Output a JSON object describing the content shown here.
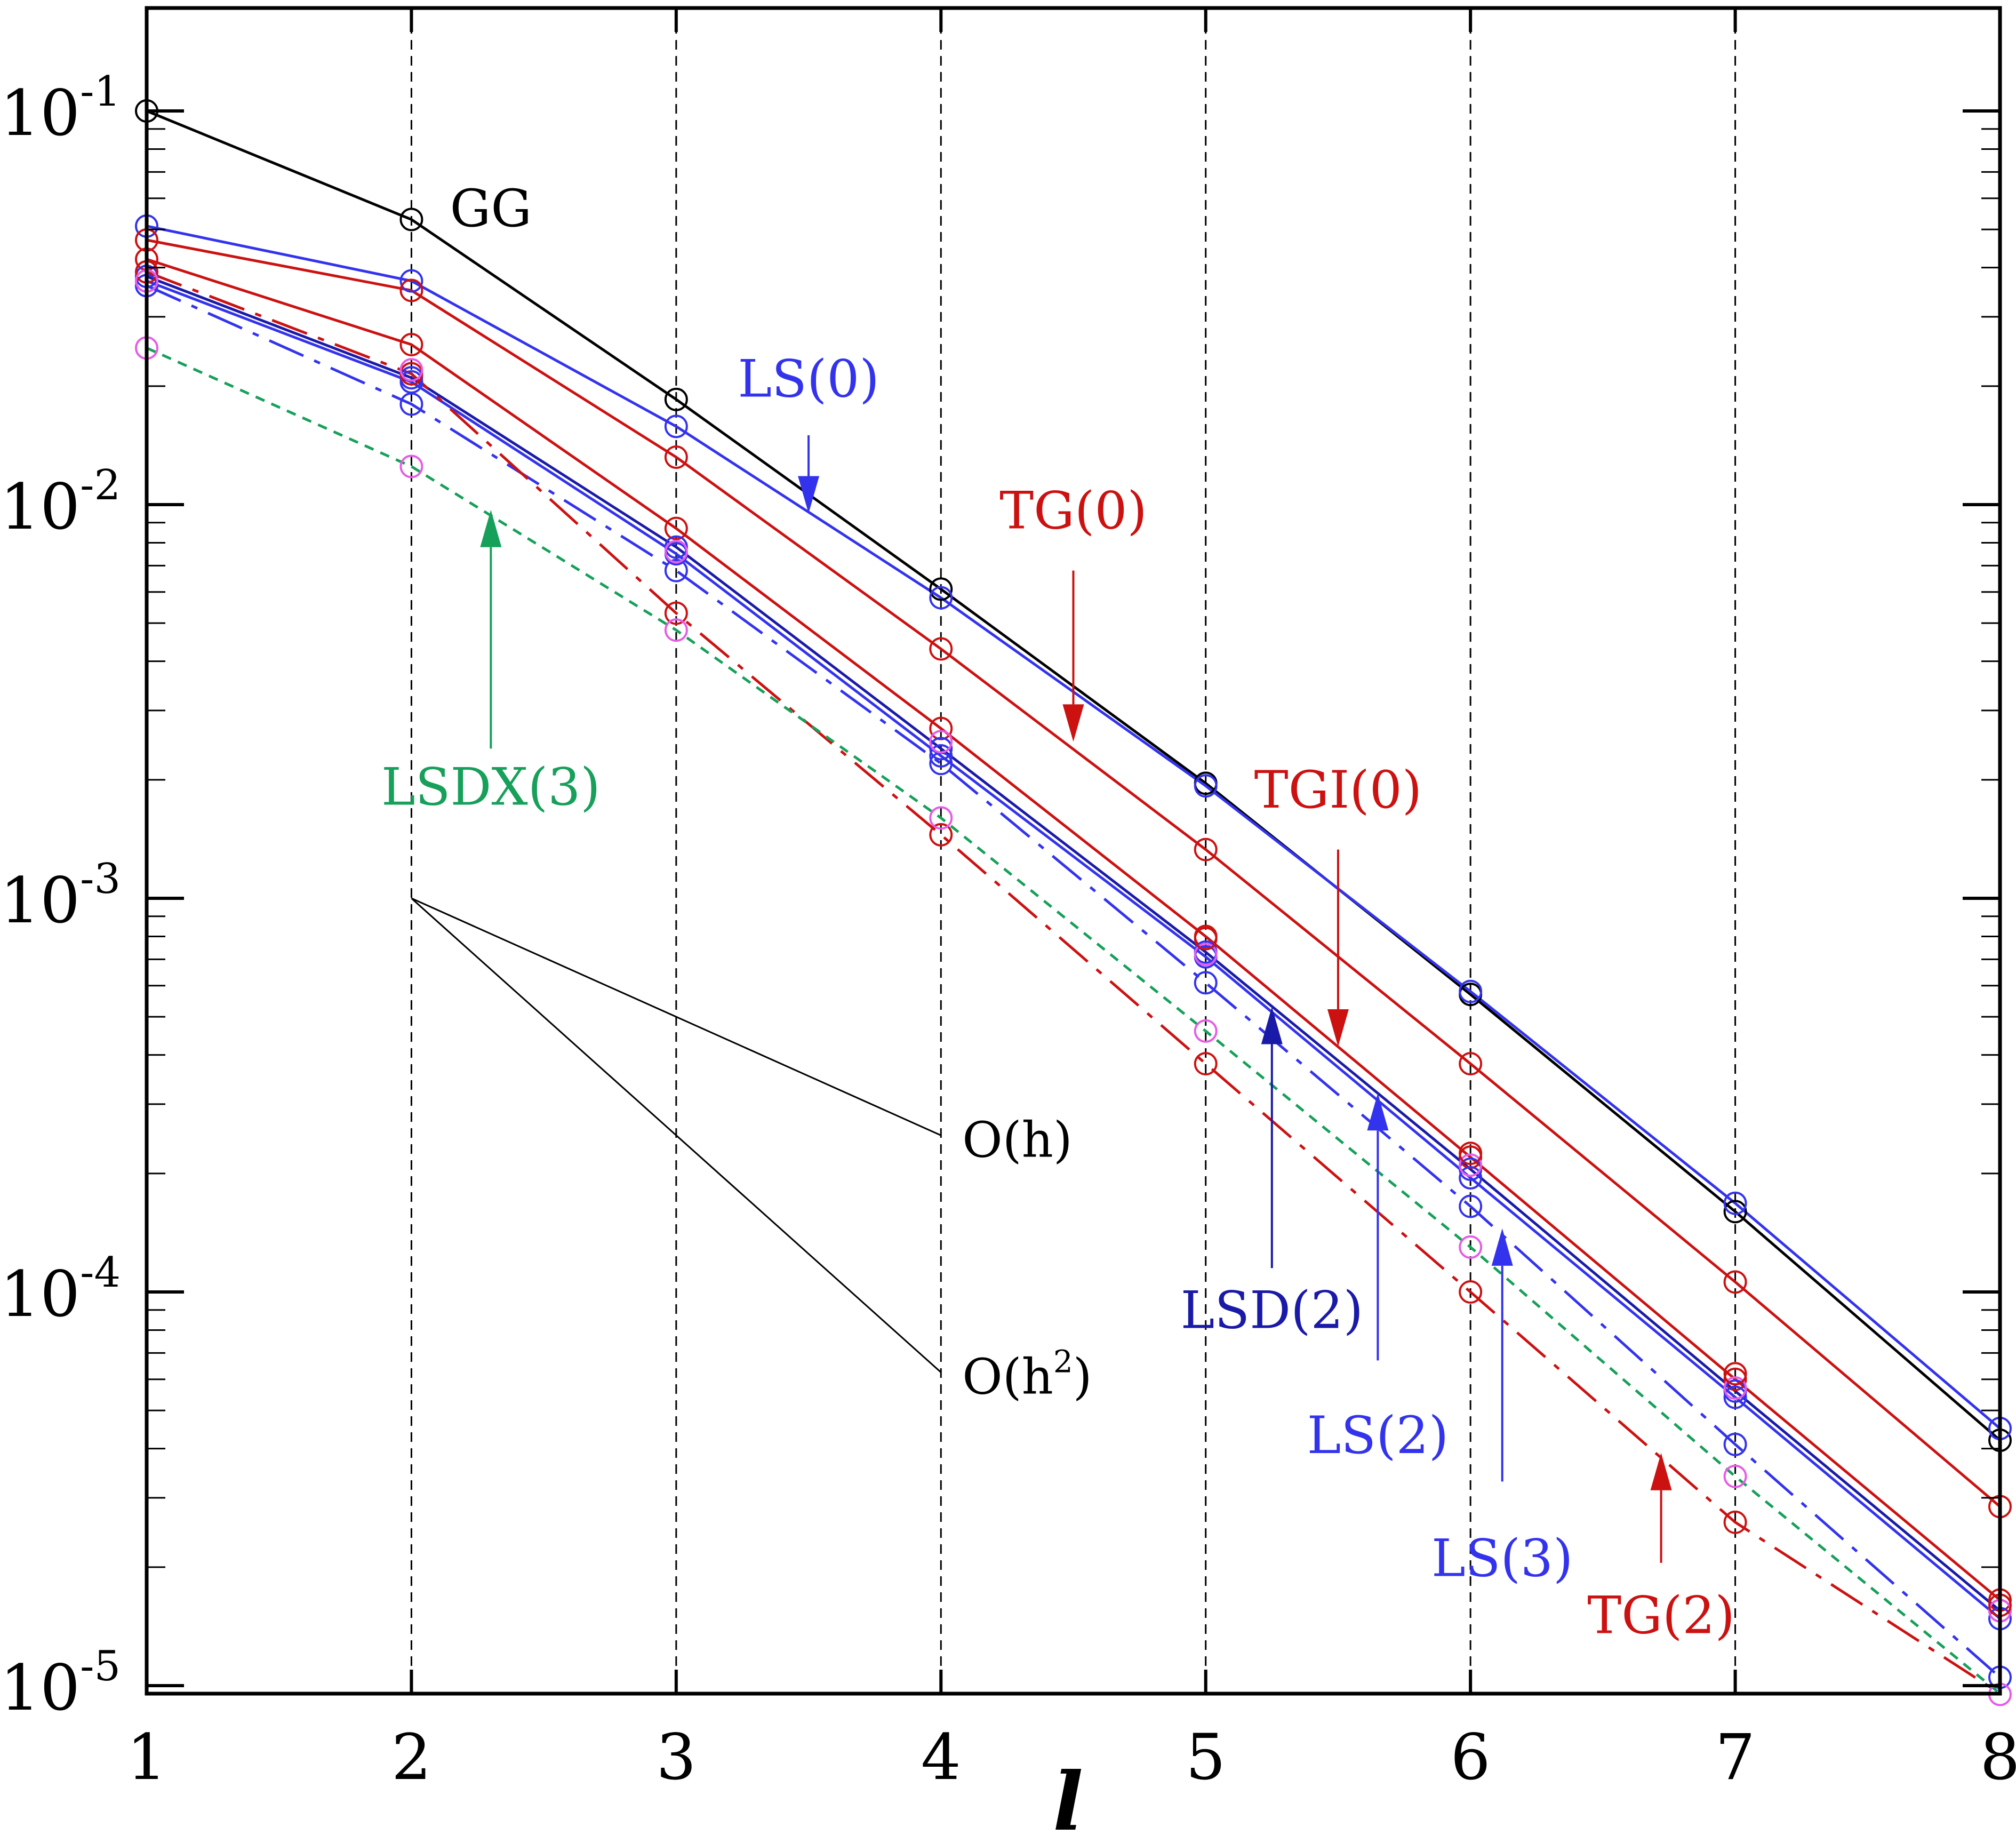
{
  "chart_data": {
    "type": "line",
    "title": "",
    "xlabel": "l",
    "ylabel": "",
    "yscale": "log",
    "xlim": [
      1,
      8
    ],
    "ylim": [
      1e-05,
      0.2
    ],
    "x": [
      1,
      2,
      3,
      4,
      5,
      6,
      7,
      8
    ],
    "x_tick_labels": [
      "1",
      "2",
      "3",
      "4",
      "5",
      "6",
      "7",
      "8"
    ],
    "y_ticks": [
      {
        "value": 0.1,
        "base": "10",
        "exp": "-1"
      },
      {
        "value": 0.01,
        "base": "10",
        "exp": "-2"
      },
      {
        "value": 0.001,
        "base": "10",
        "exp": "-3"
      },
      {
        "value": 0.0001,
        "base": "10",
        "exp": "-4"
      },
      {
        "value": 1e-05,
        "base": "10",
        "exp": "-5"
      }
    ],
    "grid": "vertical dashed at each x",
    "colors": {
      "black": "#000000",
      "blue": "#3333ee",
      "darkblue": "#1a1aa8",
      "red": "#cc1111",
      "magenta": "#e65ce6",
      "green": "#17a05a"
    },
    "series": [
      {
        "name": "GG",
        "color": "black",
        "style": "solid",
        "marker": "black",
        "values": [
          0.1,
          0.053,
          0.0185,
          0.0061,
          0.00196,
          0.00057,
          0.00016,
          4.2e-05
        ]
      },
      {
        "name": "LS(0)",
        "color": "blue",
        "style": "solid",
        "marker": "blue",
        "values": [
          0.051,
          0.037,
          0.0158,
          0.0058,
          0.00193,
          0.00058,
          0.000168,
          4.5e-05
        ]
      },
      {
        "name": "TG(0)",
        "color": "red",
        "style": "solid",
        "marker": "red",
        "values": [
          0.047,
          0.035,
          0.0132,
          0.0043,
          0.00133,
          0.00038,
          0.000106,
          2.85e-05
        ]
      },
      {
        "name": "TGI(0)",
        "color": "red",
        "style": "solid",
        "marker": "red",
        "values": [
          0.042,
          0.0255,
          0.0087,
          0.0027,
          0.0008,
          0.00022,
          6e-05,
          1.65e-05
        ]
      },
      {
        "name": "LSD(2)",
        "color": "darkblue",
        "style": "solid",
        "marker": "blue",
        "values": [
          0.038,
          0.021,
          0.0078,
          0.0024,
          0.00073,
          0.000205,
          5.6e-05,
          1.55e-05
        ]
      },
      {
        "name": "LS(2)",
        "color": "blue",
        "style": "solid",
        "marker": "blue",
        "values": [
          0.037,
          0.0205,
          0.0075,
          0.0023,
          0.00071,
          0.000195,
          5.4e-05,
          1.48e-05
        ]
      },
      {
        "name": "LS(3)",
        "color": "blue",
        "style": "dashdot",
        "marker": "blue",
        "values": [
          0.036,
          0.018,
          0.0068,
          0.0022,
          0.00061,
          0.000165,
          4.1e-05,
          1.05e-05
        ]
      },
      {
        "name": "TG(2)",
        "color": "red",
        "style": "dashdot",
        "marker": "red",
        "values": [
          0.039,
          0.0215,
          0.0053,
          0.00145,
          0.00038,
          0.0001,
          2.6e-05,
          6.8e-06
        ]
      },
      {
        "name": "LSDX(3)",
        "color": "green",
        "style": "dotted",
        "marker": "magenta",
        "values": [
          0.025,
          0.0125,
          0.0048,
          0.0016,
          0.00046,
          0.00013,
          3.4e-05,
          9.5e-06
        ]
      }
    ],
    "extra_markers": [
      {
        "color": "magenta",
        "points": [
          [
            1,
            0.037
          ],
          [
            2,
            0.022
          ],
          [
            3,
            0.0076
          ],
          [
            4,
            0.0025
          ],
          [
            5,
            0.00072
          ],
          [
            6,
            0.00021
          ],
          [
            7,
            5.7e-05
          ],
          [
            8,
            1.55e-05
          ]
        ]
      },
      {
        "color": "red",
        "points": [
          [
            5,
            0.00079
          ],
          [
            6,
            0.000225
          ],
          [
            7,
            6.2e-05
          ],
          [
            8,
            1.6e-05
          ]
        ]
      }
    ],
    "reference_lines": [
      {
        "label": "O(h)",
        "label_base": "O(h",
        "label_sup": "",
        "label_end": ")",
        "from": [
          2,
          0.001
        ],
        "to": [
          4,
          0.00025
        ]
      },
      {
        "label": "O(h2)",
        "label_base": "O(h",
        "label_sup": "2",
        "label_end": ")",
        "from": [
          2,
          0.001
        ],
        "to": [
          4,
          6.25e-05
        ]
      }
    ],
    "annotations": [
      {
        "text": "GG",
        "color": "black",
        "at": [
          2.3,
          0.051
        ],
        "arrow": null
      },
      {
        "text": "LS(0)",
        "color": "blue",
        "at": [
          3.5,
          0.0188
        ],
        "arrow": {
          "from": [
            3.5,
            0.015
          ],
          "to": [
            3.5,
            0.0095
          ]
        }
      },
      {
        "text": "TG(0)",
        "color": "red",
        "at": [
          4.5,
          0.0087
        ],
        "arrow": {
          "from": [
            4.5,
            0.0068
          ],
          "to": [
            4.5,
            0.0025
          ]
        }
      },
      {
        "text": "TGI(0)",
        "color": "red",
        "at": [
          5.5,
          0.0017
        ],
        "arrow": {
          "from": [
            5.5,
            0.00133
          ],
          "to": [
            5.5,
            0.00042
          ]
        }
      },
      {
        "text": "LSD(2)",
        "color": "darkblue",
        "at": [
          5.25,
          8.1e-05
        ],
        "arrow": {
          "from": [
            5.25,
            0.000115
          ],
          "to": [
            5.25,
            0.00053
          ]
        }
      },
      {
        "text": "LS(2)",
        "color": "blue",
        "at": [
          5.65,
          3.9e-05
        ],
        "arrow": {
          "from": [
            5.65,
            6.7e-05
          ],
          "to": [
            5.65,
            0.00032
          ]
        }
      },
      {
        "text": "LS(3)",
        "color": "blue",
        "at": [
          6.12,
          1.9e-05
        ],
        "arrow": {
          "from": [
            6.12,
            3.3e-05
          ],
          "to": [
            6.12,
            0.000145
          ]
        }
      },
      {
        "text": "TG(2)",
        "color": "red",
        "at": [
          6.72,
          1.36e-05
        ],
        "arrow": {
          "from": [
            6.72,
            2.05e-05
          ],
          "to": [
            6.72,
            3.9e-05
          ]
        }
      },
      {
        "text": "LSDX(3)",
        "color": "green",
        "at": [
          2.3,
          0.00173
        ],
        "arrow": {
          "from": [
            2.3,
            0.0024
          ],
          "to": [
            2.3,
            0.0097
          ]
        }
      }
    ]
  }
}
